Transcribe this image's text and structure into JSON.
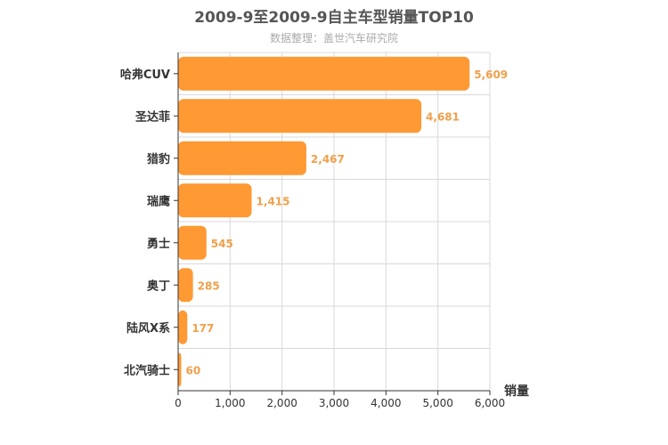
{
  "chart_data": {
    "type": "bar",
    "orientation": "horizontal",
    "title": "2009-9至2009-9自主车型销量TOP10",
    "subtitle": "数据整理：盖世汽车研究院",
    "categories": [
      "哈弗CUV",
      "圣达菲",
      "猎豹",
      "瑞鹰",
      "勇士",
      "奥丁",
      "陆风X系",
      "北汽骑士"
    ],
    "values": [
      5609,
      4681,
      2467,
      1415,
      545,
      285,
      177,
      60
    ],
    "value_labels": [
      "5,609",
      "4,681",
      "2,467",
      "1,415",
      "545",
      "285",
      "177",
      "60"
    ],
    "xlabel": "销量",
    "xlim": [
      0,
      6000
    ],
    "ticks": [
      0,
      1000,
      2000,
      3000,
      4000,
      5000,
      6000
    ],
    "tick_labels": [
      "0",
      "1,000",
      "2,000",
      "3,000",
      "4,000",
      "5,000",
      "6,000"
    ],
    "grid": true,
    "bar_color": "#ff9933"
  }
}
